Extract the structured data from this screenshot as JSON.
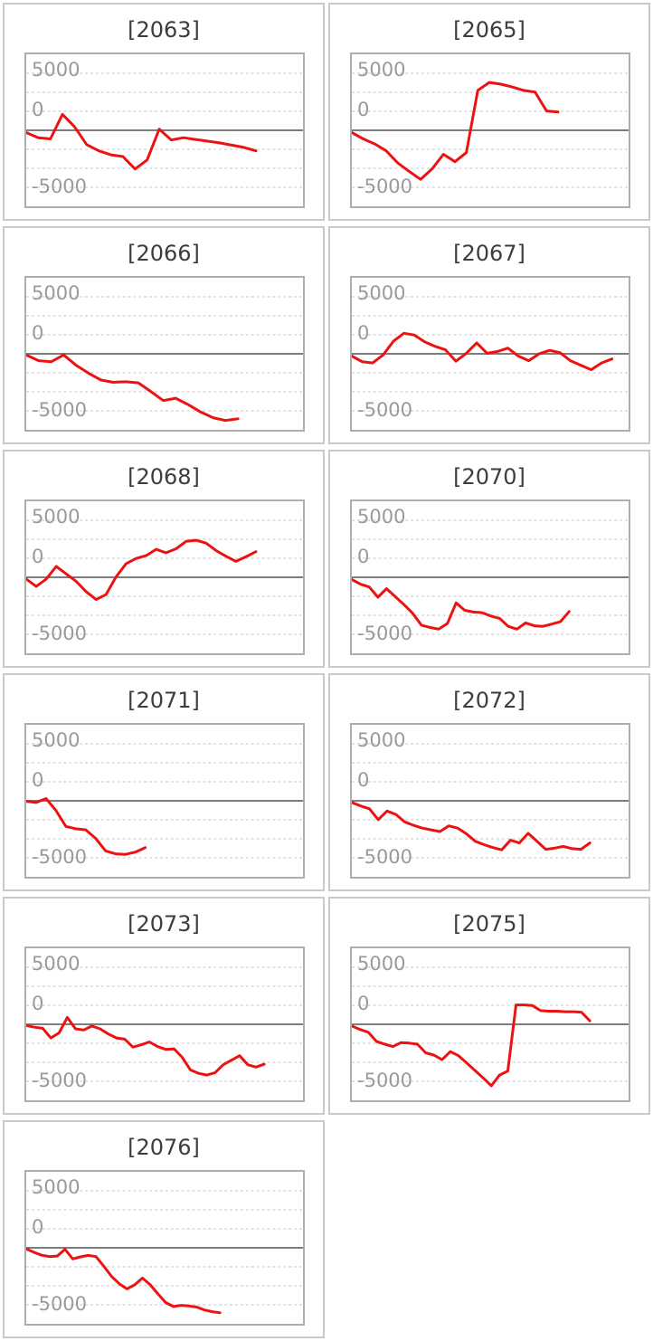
{
  "style": {
    "line_color": "#ee1111",
    "grid_color": "#d9d9d9",
    "zero_line_color": "#7d7d7d",
    "plot_border_color": "#aeaeae",
    "card_border_color": "#c9c9c9",
    "title_color": "#3d3d3d",
    "tick_color": "#9a9a9a",
    "background": "#ffffff"
  },
  "chart_data": [
    {
      "type": "line",
      "title": "[2063]",
      "yticks": [
        "5000",
        "0",
        "-5000"
      ],
      "ylim": [
        -6667,
        6667
      ],
      "grid": "horizontal-dashed",
      "legend": "none",
      "x_end": 0.83,
      "series": [
        {
          "name": "value",
          "values": [
            -200,
            -650,
            -750,
            1400,
            300,
            -1250,
            -1800,
            -2150,
            -2300,
            -3400,
            -2600,
            100,
            -850,
            -650,
            -800,
            -950,
            -1100,
            -1300,
            -1500,
            -1800
          ]
        }
      ]
    },
    {
      "type": "line",
      "title": "[2065]",
      "yticks": [
        "5000",
        "0",
        "-5000"
      ],
      "ylim": [
        -6667,
        6667
      ],
      "grid": "horizontal-dashed",
      "legend": "none",
      "x_end": 0.745,
      "series": [
        {
          "name": "value",
          "values": [
            -200,
            -750,
            -1200,
            -1800,
            -2850,
            -3600,
            -4300,
            -3400,
            -2100,
            -2750,
            -1950,
            3500,
            4200,
            4050,
            3800,
            3500,
            3350,
            1700,
            1600
          ]
        }
      ]
    },
    {
      "type": "line",
      "title": "[2066]",
      "yticks": [
        "5000",
        "0",
        "-5000"
      ],
      "ylim": [
        -6667,
        6667
      ],
      "grid": "horizontal-dashed",
      "legend": "none",
      "x_end": 0.765,
      "series": [
        {
          "name": "value",
          "values": [
            -100,
            -600,
            -700,
            -100,
            -1000,
            -1700,
            -2300,
            -2500,
            -2450,
            -2550,
            -3300,
            -4100,
            -3900,
            -4450,
            -5100,
            -5600,
            -5850,
            -5700
          ]
        }
      ]
    },
    {
      "type": "line",
      "title": "[2067]",
      "yticks": [
        "5000",
        "0",
        "-5000"
      ],
      "ylim": [
        -6667,
        6667
      ],
      "grid": "horizontal-dashed",
      "legend": "none",
      "x_end": 0.94,
      "series": [
        {
          "name": "value",
          "values": [
            -200,
            -700,
            -800,
            -100,
            1100,
            1800,
            1650,
            1050,
            650,
            350,
            -650,
            50,
            950,
            50,
            200,
            500,
            -200,
            -600,
            0,
            300,
            100,
            -600,
            -1000,
            -1400,
            -800,
            -450
          ]
        }
      ]
    },
    {
      "type": "line",
      "title": "[2068]",
      "yticks": [
        "5000",
        "0",
        "-5000"
      ],
      "ylim": [
        -6667,
        6667
      ],
      "grid": "horizontal-dashed",
      "legend": "none",
      "x_end": 0.83,
      "series": [
        {
          "name": "value",
          "values": [
            -150,
            -800,
            -150,
            950,
            300,
            -350,
            -1250,
            -1950,
            -1500,
            50,
            1200,
            1650,
            1900,
            2450,
            2150,
            2500,
            3150,
            3250,
            3000,
            2350,
            1850,
            1400,
            1800,
            2250
          ]
        }
      ]
    },
    {
      "type": "line",
      "title": "[2070]",
      "yticks": [
        "5000",
        "0",
        "-5000"
      ],
      "ylim": [
        -6667,
        6667
      ],
      "grid": "horizontal-dashed",
      "legend": "none",
      "x_end": 0.785,
      "series": [
        {
          "name": "value",
          "values": [
            -200,
            -600,
            -850,
            -1750,
            -1000,
            -1700,
            -2400,
            -3150,
            -4200,
            -4400,
            -4550,
            -4050,
            -2250,
            -2900,
            -3050,
            -3100,
            -3400,
            -3600,
            -4300,
            -4550,
            -4000,
            -4250,
            -4300,
            -4100,
            -3900,
            -3000
          ]
        }
      ]
    },
    {
      "type": "line",
      "title": "[2071]",
      "yticks": [
        "5000",
        "0",
        "-5000"
      ],
      "ylim": [
        -6667,
        6667
      ],
      "grid": "horizontal-dashed",
      "legend": "none",
      "x_end": 0.43,
      "series": [
        {
          "name": "value",
          "values": [
            -50,
            -150,
            200,
            -850,
            -2250,
            -2450,
            -2550,
            -3300,
            -4400,
            -4650,
            -4700,
            -4500,
            -4100
          ]
        }
      ]
    },
    {
      "type": "line",
      "title": "[2072]",
      "yticks": [
        "5000",
        "0",
        "-5000"
      ],
      "ylim": [
        -6667,
        6667
      ],
      "grid": "horizontal-dashed",
      "legend": "none",
      "x_end": 0.86,
      "series": [
        {
          "name": "value",
          "values": [
            -150,
            -450,
            -700,
            -1650,
            -900,
            -1200,
            -1850,
            -2150,
            -2400,
            -2550,
            -2700,
            -2200,
            -2400,
            -2900,
            -3550,
            -3850,
            -4100,
            -4300,
            -3450,
            -3700,
            -2850,
            -3550,
            -4250,
            -4150,
            -4000,
            -4200,
            -4250,
            -3700
          ]
        }
      ]
    },
    {
      "type": "line",
      "title": "[2073]",
      "yticks": [
        "5000",
        "0",
        "-5000"
      ],
      "ylim": [
        -6667,
        6667
      ],
      "grid": "horizontal-dashed",
      "legend": "none",
      "x_end": 0.86,
      "series": [
        {
          "name": "value",
          "values": [
            -100,
            -250,
            -350,
            -1200,
            -750,
            600,
            -400,
            -500,
            -150,
            -400,
            -850,
            -1200,
            -1300,
            -2000,
            -1800,
            -1550,
            -1950,
            -2200,
            -2150,
            -2900,
            -4000,
            -4300,
            -4450,
            -4250,
            -3550,
            -3150,
            -2750,
            -3550,
            -3750,
            -3500
          ]
        }
      ]
    },
    {
      "type": "line",
      "title": "[2075]",
      "yticks": [
        "5000",
        "0",
        "-5000"
      ],
      "ylim": [
        -6667,
        6667
      ],
      "grid": "horizontal-dashed",
      "legend": "none",
      "x_end": 0.86,
      "series": [
        {
          "name": "value",
          "values": [
            -150,
            -450,
            -700,
            -1500,
            -1750,
            -1950,
            -1600,
            -1650,
            -1750,
            -2500,
            -2700,
            -3100,
            -2400,
            -2750,
            -3400,
            -4050,
            -4700,
            -5400,
            -4450,
            -4100,
            1700,
            1700,
            1650,
            1200,
            1150,
            1150,
            1100,
            1100,
            1050,
            300
          ]
        }
      ]
    },
    {
      "type": "line",
      "title": "[2076]",
      "yticks": [
        "5000",
        "0",
        "-5000"
      ],
      "ylim": [
        -6667,
        6667
      ],
      "grid": "horizontal-dashed",
      "legend": "none",
      "x_end": 0.7,
      "series": [
        {
          "name": "value",
          "values": [
            -100,
            -400,
            -650,
            -770,
            -720,
            -130,
            -975,
            -790,
            -665,
            -770,
            -1600,
            -2500,
            -3150,
            -3600,
            -3250,
            -2650,
            -3250,
            -4050,
            -4800,
            -5150,
            -5050,
            -5100,
            -5200,
            -5450,
            -5600,
            -5700
          ]
        }
      ]
    }
  ]
}
